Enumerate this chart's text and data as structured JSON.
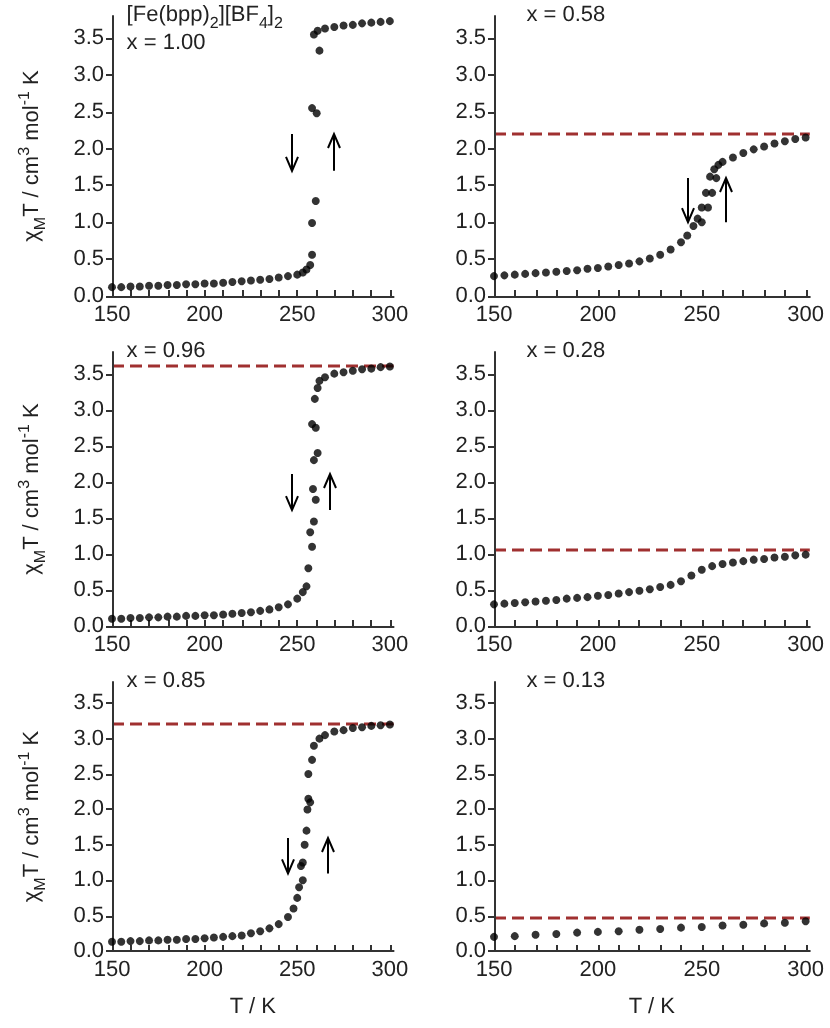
{
  "chart_data": [
    {
      "type": "scatter",
      "annotations": [
        "[Fe(bpp)$_{2}$][BF$_{4}$]$_{2}$",
        "x = 1.00"
      ],
      "ylabel": "χ$_{M}$T / cm$^{3}$ mol$^{-1}$ K",
      "color": "#000000",
      "marker": "circle",
      "xlim": [
        150,
        302
      ],
      "xticks": [
        150,
        {
          "value": 160,
          "label": null
        },
        {
          "value": 170,
          "label": null
        },
        {
          "value": 180,
          "label": null
        },
        {
          "value": 190,
          "label": null
        },
        200,
        {
          "value": 210,
          "label": null
        },
        {
          "value": 220,
          "label": null
        },
        {
          "value": 230,
          "label": null
        },
        {
          "value": 240,
          "label": null
        },
        250,
        {
          "value": 260,
          "label": null
        },
        {
          "value": 270,
          "label": null
        },
        {
          "value": 280,
          "label": null
        },
        {
          "value": 290,
          "label": null
        },
        300
      ],
      "ylim": [
        0,
        3.8
      ],
      "yticks": [
        {
          "value": 0,
          "label": "0.0"
        },
        0.5,
        {
          "value": 1,
          "label": "1.0"
        },
        1.5,
        {
          "value": 2,
          "label": "2.0"
        },
        2.5,
        {
          "value": 3,
          "label": "3.0"
        },
        3.5
      ],
      "x": [
        150,
        155,
        160,
        165,
        170,
        175,
        180,
        185,
        190,
        195,
        200,
        205,
        210,
        215,
        220,
        225,
        230,
        235,
        240,
        245,
        250,
        253,
        255,
        257,
        258,
        258,
        258,
        260,
        260.5,
        262,
        259,
        261,
        265,
        270,
        275,
        280,
        285,
        290,
        295,
        300
      ],
      "values": [
        0.12,
        0.12,
        0.13,
        0.13,
        0.14,
        0.14,
        0.15,
        0.15,
        0.16,
        0.16,
        0.17,
        0.17,
        0.18,
        0.19,
        0.2,
        0.21,
        0.22,
        0.23,
        0.25,
        0.27,
        0.29,
        0.32,
        0.36,
        0.42,
        0.56,
        0.99,
        2.55,
        1.29,
        2.48,
        3.33,
        3.55,
        3.6,
        3.63,
        3.65,
        3.67,
        3.68,
        3.7,
        3.71,
        3.72,
        3.73
      ]
    },
    {
      "type": "scatter",
      "annotations": [
        "x = 0.58"
      ],
      "color": "#000000",
      "marker": "circle",
      "xlim": [
        150,
        302
      ],
      "xticks": [
        150,
        {
          "value": 160,
          "label": null
        },
        {
          "value": 170,
          "label": null
        },
        {
          "value": 180,
          "label": null
        },
        {
          "value": 190,
          "label": null
        },
        200,
        {
          "value": 210,
          "label": null
        },
        {
          "value": 220,
          "label": null
        },
        {
          "value": 230,
          "label": null
        },
        {
          "value": 240,
          "label": null
        },
        250,
        {
          "value": 260,
          "label": null
        },
        {
          "value": 270,
          "label": null
        },
        {
          "value": 280,
          "label": null
        },
        {
          "value": 290,
          "label": null
        },
        300
      ],
      "ylim": [
        0,
        3.8
      ],
      "yticks": [
        {
          "value": 0,
          "label": "0.0"
        },
        0.5,
        {
          "value": 1,
          "label": "1.0"
        },
        1.5,
        {
          "value": 2,
          "label": "2.0"
        },
        2.5,
        {
          "value": 3,
          "label": "3.0"
        },
        3.5
      ],
      "x": [
        150,
        155,
        160,
        165,
        170,
        175,
        180,
        185,
        190,
        195,
        200,
        205,
        210,
        215,
        220,
        225,
        230,
        235,
        240,
        243,
        246,
        248,
        250,
        252,
        254,
        256,
        258,
        260,
        265,
        270,
        275,
        280,
        285,
        290,
        295,
        300,
        250,
        253,
        255,
        257
      ],
      "values": [
        0.27,
        0.28,
        0.29,
        0.3,
        0.31,
        0.32,
        0.33,
        0.34,
        0.35,
        0.37,
        0.38,
        0.4,
        0.42,
        0.44,
        0.47,
        0.51,
        0.56,
        0.63,
        0.73,
        0.82,
        0.95,
        1.05,
        1.2,
        1.4,
        1.62,
        1.72,
        1.78,
        1.82,
        1.88,
        1.94,
        1.99,
        2.03,
        2.07,
        2.1,
        2.13,
        2.15,
        1.0,
        1.2,
        1.4,
        1.6
      ],
      "ref_lines": [
        {
          "axis": "y",
          "value": 2.2,
          "label": null,
          "color": "#a03030",
          "line_style": "dashed"
        }
      ]
    },
    {
      "type": "scatter",
      "annotations": [
        "x = 0.96"
      ],
      "ylabel": "χ$_{M}$T / cm$^{3}$ mol$^{-1}$ K",
      "color": "#000000",
      "marker": "circle",
      "xlim": [
        150,
        302
      ],
      "xticks": [
        150,
        {
          "value": 160,
          "label": null
        },
        {
          "value": 170,
          "label": null
        },
        {
          "value": 180,
          "label": null
        },
        {
          "value": 190,
          "label": null
        },
        200,
        {
          "value": 210,
          "label": null
        },
        {
          "value": 220,
          "label": null
        },
        {
          "value": 230,
          "label": null
        },
        {
          "value": 240,
          "label": null
        },
        250,
        {
          "value": 260,
          "label": null
        },
        {
          "value": 270,
          "label": null
        },
        {
          "value": 280,
          "label": null
        },
        {
          "value": 290,
          "label": null
        },
        300
      ],
      "ylim": [
        0,
        3.8
      ],
      "yticks": [
        {
          "value": 0,
          "label": "0.0"
        },
        0.5,
        {
          "value": 1,
          "label": "1.0"
        },
        1.5,
        {
          "value": 2,
          "label": "2.0"
        },
        2.5,
        {
          "value": 3,
          "label": "3.0"
        },
        3.5
      ],
      "x": [
        150,
        155,
        160,
        165,
        170,
        175,
        180,
        185,
        190,
        195,
        200,
        205,
        210,
        215,
        220,
        225,
        230,
        235,
        240,
        245,
        250,
        253,
        255,
        256,
        258,
        257,
        259,
        260,
        258.5,
        259,
        261,
        258,
        260,
        259.5,
        261,
        262,
        265,
        270,
        275,
        280,
        285,
        290,
        295,
        300
      ],
      "values": [
        0.1,
        0.1,
        0.11,
        0.11,
        0.12,
        0.12,
        0.13,
        0.13,
        0.14,
        0.14,
        0.15,
        0.15,
        0.16,
        0.17,
        0.18,
        0.19,
        0.21,
        0.23,
        0.26,
        0.3,
        0.38,
        0.47,
        0.55,
        0.8,
        1.1,
        1.3,
        1.45,
        1.75,
        1.9,
        2.3,
        2.4,
        2.8,
        2.75,
        3.15,
        3.3,
        3.4,
        3.45,
        3.5,
        3.52,
        3.54,
        3.56,
        3.57,
        3.59,
        3.6
      ],
      "ref_lines": [
        {
          "axis": "y",
          "value": 3.6,
          "label": null,
          "color": "#a03030",
          "line_style": "dashed"
        }
      ]
    },
    {
      "type": "scatter",
      "annotations": [
        "x = 0.28"
      ],
      "color": "#000000",
      "marker": "circle",
      "xlim": [
        150,
        302
      ],
      "xticks": [
        150,
        {
          "value": 160,
          "label": null
        },
        {
          "value": 170,
          "label": null
        },
        {
          "value": 180,
          "label": null
        },
        {
          "value": 190,
          "label": null
        },
        200,
        {
          "value": 210,
          "label": null
        },
        {
          "value": 220,
          "label": null
        },
        {
          "value": 230,
          "label": null
        },
        {
          "value": 240,
          "label": null
        },
        250,
        {
          "value": 260,
          "label": null
        },
        {
          "value": 270,
          "label": null
        },
        {
          "value": 280,
          "label": null
        },
        {
          "value": 290,
          "label": null
        },
        300
      ],
      "ylim": [
        0,
        3.8
      ],
      "yticks": [
        {
          "value": 0,
          "label": "0.0"
        },
        0.5,
        {
          "value": 1,
          "label": "1.0"
        },
        1.5,
        {
          "value": 2,
          "label": "2.0"
        },
        2.5,
        {
          "value": 3,
          "label": "3.0"
        },
        3.5
      ],
      "x": [
        150,
        155,
        160,
        165,
        170,
        175,
        180,
        185,
        190,
        195,
        200,
        205,
        210,
        215,
        220,
        225,
        230,
        235,
        240,
        245,
        250,
        255,
        260,
        265,
        270,
        275,
        280,
        285,
        290,
        295,
        300
      ],
      "values": [
        0.3,
        0.31,
        0.32,
        0.33,
        0.34,
        0.35,
        0.36,
        0.38,
        0.39,
        0.4,
        0.42,
        0.43,
        0.45,
        0.47,
        0.49,
        0.51,
        0.54,
        0.57,
        0.62,
        0.7,
        0.78,
        0.83,
        0.86,
        0.88,
        0.9,
        0.92,
        0.93,
        0.95,
        0.96,
        0.98,
        0.99
      ],
      "ref_lines": [
        {
          "axis": "y",
          "value": 1.05,
          "label": null,
          "color": "#a03030",
          "line_style": "dashed"
        }
      ]
    },
    {
      "type": "scatter",
      "annotations": [
        "x = 0.85"
      ],
      "ylabel": "χ$_{M}$T / cm$^{3}$ mol$^{-1}$ K",
      "xlabel": "T / K",
      "color": "#000000",
      "marker": "circle",
      "xlim": [
        150,
        302
      ],
      "xticks": [
        150,
        {
          "value": 160,
          "label": null
        },
        {
          "value": 170,
          "label": null
        },
        {
          "value": 180,
          "label": null
        },
        {
          "value": 190,
          "label": null
        },
        200,
        {
          "value": 210,
          "label": null
        },
        {
          "value": 220,
          "label": null
        },
        {
          "value": 230,
          "label": null
        },
        {
          "value": 240,
          "label": null
        },
        250,
        {
          "value": 260,
          "label": null
        },
        {
          "value": 270,
          "label": null
        },
        {
          "value": 280,
          "label": null
        },
        {
          "value": 290,
          "label": null
        },
        300
      ],
      "ylim": [
        0,
        3.8
      ],
      "yticks": [
        {
          "value": 0,
          "label": "0.0"
        },
        0.5,
        {
          "value": 1,
          "label": "1.0"
        },
        1.5,
        {
          "value": 2,
          "label": "2.0"
        },
        2.5,
        {
          "value": 3,
          "label": "3.0"
        },
        3.5
      ],
      "x": [
        150,
        155,
        160,
        165,
        170,
        175,
        180,
        185,
        190,
        195,
        200,
        205,
        210,
        215,
        220,
        225,
        230,
        235,
        240,
        245,
        248,
        250,
        251,
        252,
        253,
        253,
        254,
        255,
        255.5,
        256,
        257,
        256,
        258,
        259,
        262,
        265,
        270,
        275,
        280,
        285,
        290,
        295,
        300
      ],
      "values": [
        0.13,
        0.13,
        0.14,
        0.14,
        0.15,
        0.15,
        0.16,
        0.16,
        0.17,
        0.17,
        0.18,
        0.19,
        0.2,
        0.21,
        0.22,
        0.25,
        0.28,
        0.32,
        0.38,
        0.48,
        0.6,
        0.75,
        0.9,
        1.2,
        1.0,
        1.25,
        1.5,
        1.7,
        2.0,
        2.15,
        2.1,
        2.5,
        2.7,
        2.9,
        3.0,
        3.05,
        3.1,
        3.12,
        3.15,
        3.16,
        3.18,
        3.19,
        3.2
      ],
      "ref_lines": [
        {
          "axis": "y",
          "value": 3.2,
          "label": null,
          "color": "#a03030",
          "line_style": "dashed"
        }
      ]
    },
    {
      "type": "scatter",
      "annotations": [
        "x = 0.13"
      ],
      "xlabel": "T / K",
      "color": "#000000",
      "marker": "circle",
      "xlim": [
        150,
        302
      ],
      "xticks": [
        150,
        {
          "value": 160,
          "label": null
        },
        {
          "value": 170,
          "label": null
        },
        {
          "value": 180,
          "label": null
        },
        {
          "value": 190,
          "label": null
        },
        200,
        {
          "value": 210,
          "label": null
        },
        {
          "value": 220,
          "label": null
        },
        {
          "value": 230,
          "label": null
        },
        {
          "value": 240,
          "label": null
        },
        250,
        {
          "value": 260,
          "label": null
        },
        {
          "value": 270,
          "label": null
        },
        {
          "value": 280,
          "label": null
        },
        {
          "value": 290,
          "label": null
        },
        300
      ],
      "ylim": [
        0,
        3.8
      ],
      "yticks": [
        {
          "value": 0,
          "label": "0.0"
        },
        0.5,
        {
          "value": 1,
          "label": "1.0"
        },
        1.5,
        {
          "value": 2,
          "label": "2.0"
        },
        2.5,
        {
          "value": 3,
          "label": "3.0"
        },
        3.5
      ],
      "x": [
        150,
        160,
        170,
        180,
        190,
        200,
        210,
        220,
        230,
        240,
        250,
        260,
        270,
        280,
        290,
        300
      ],
      "values": [
        0.2,
        0.21,
        0.23,
        0.24,
        0.26,
        0.27,
        0.28,
        0.3,
        0.31,
        0.33,
        0.34,
        0.36,
        0.37,
        0.39,
        0.4,
        0.42
      ],
      "ref_lines": [
        {
          "axis": "y",
          "value": 0.48,
          "label": null,
          "color": "#a03030",
          "line_style": "dashed"
        }
      ]
    }
  ]
}
